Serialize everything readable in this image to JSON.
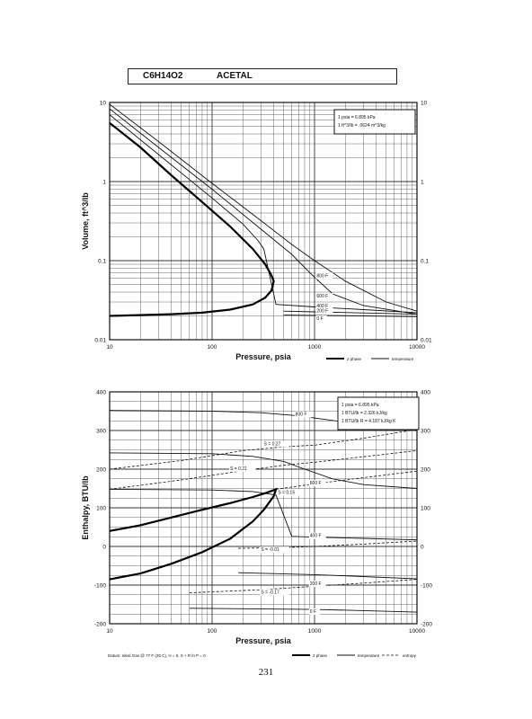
{
  "header": {
    "formula": "C6H14O2",
    "name": "ACETAL"
  },
  "page_number": "231",
  "chart_data": [
    {
      "type": "line",
      "xscale": "log",
      "yscale": "log",
      "xlabel": "Pressure,  psia",
      "ylabel": "Volume, ft^3/lb",
      "xlim": [
        10,
        10000
      ],
      "ylim": [
        0.01,
        10
      ],
      "xticks": [
        "10",
        "100",
        "1000",
        "10000"
      ],
      "yticks": [
        "0.01",
        "0.1",
        "1",
        "10"
      ],
      "ytick_values": [
        0.01,
        0.1,
        1,
        10
      ],
      "conversions": [
        "1 psia = 6.895 kPa",
        "1 ft^3/lb = .0624 m^3/kg"
      ],
      "legend": [
        "2 phase",
        "temperature"
      ],
      "series": [
        {
          "kind": "2 phase",
          "points": [
            [
              10,
              5.5
            ],
            [
              20,
              2.7
            ],
            [
              40,
              1.2
            ],
            [
              80,
              0.55
            ],
            [
              150,
              0.27
            ],
            [
              250,
              0.14
            ],
            [
              330,
              0.09
            ],
            [
              380,
              0.065
            ],
            [
              400,
              0.055
            ],
            [
              380,
              0.042
            ],
            [
              330,
              0.034
            ],
            [
              250,
              0.028
            ],
            [
              150,
              0.024
            ],
            [
              80,
              0.022
            ],
            [
              40,
              0.021
            ],
            [
              10,
              0.02
            ]
          ]
        },
        {
          "kind": "temperature",
          "name": "800 F",
          "points": [
            [
              10,
              9.5
            ],
            [
              30,
              3.2
            ],
            [
              100,
              0.95
            ],
            [
              300,
              0.32
            ],
            [
              600,
              0.16
            ],
            [
              1000,
              0.1
            ],
            [
              2000,
              0.055
            ],
            [
              5000,
              0.03
            ],
            [
              10000,
              0.023
            ]
          ]
        },
        {
          "kind": "temperature",
          "name": "600 F",
          "points": [
            [
              10,
              8.3
            ],
            [
              30,
              2.7
            ],
            [
              100,
              0.8
            ],
            [
              300,
              0.25
            ],
            [
              600,
              0.12
            ],
            [
              900,
              0.07
            ],
            [
              1500,
              0.038
            ],
            [
              3000,
              0.027
            ],
            [
              10000,
              0.021
            ]
          ]
        },
        {
          "kind": "temperature",
          "name": "400 F",
          "points": [
            [
              10,
              7
            ],
            [
              30,
              2.2
            ],
            [
              100,
              0.62
            ],
            [
              200,
              0.29
            ],
            [
              280,
              0.18
            ],
            [
              320,
              0.14
            ],
            [
              420,
              0.028
            ],
            [
              1000,
              0.026
            ],
            [
              3000,
              0.024
            ],
            [
              10000,
              0.022
            ]
          ]
        },
        {
          "kind": "temperature",
          "name": "200 F",
          "points": [
            [
              500,
              0.023
            ],
            [
              1000,
              0.0225
            ],
            [
              3000,
              0.0218
            ],
            [
              10000,
              0.021
            ]
          ]
        },
        {
          "kind": "temperature",
          "name": "0 F",
          "points": [
            [
              500,
              0.0205
            ],
            [
              1000,
              0.0203
            ],
            [
              3000,
              0.02
            ],
            [
              10000,
              0.0196
            ]
          ]
        }
      ],
      "labels": [
        {
          "text": "800 F",
          "x": 1050,
          "y": 0.062
        },
        {
          "text": "600 F",
          "x": 1050,
          "y": 0.034
        },
        {
          "text": "400 F",
          "x": 1050,
          "y": 0.0255
        },
        {
          "text": "200 F",
          "x": 1050,
          "y": 0.0222
        },
        {
          "text": "0 F",
          "x": 1050,
          "y": 0.0178
        }
      ]
    },
    {
      "type": "line",
      "xscale": "log",
      "yscale": "linear",
      "xlabel": "Pressure,  psia",
      "ylabel": "Enthalpy, BTU/lb",
      "xlim": [
        10,
        10000
      ],
      "ylim": [
        -200,
        400
      ],
      "xticks": [
        "10",
        "100",
        "1000",
        "10000"
      ],
      "yticks": [
        "-200",
        "-100",
        "0",
        "100",
        "200",
        "300",
        "400"
      ],
      "ytick_values": [
        -200,
        -100,
        0,
        100,
        200,
        300,
        400
      ],
      "conversions": [
        "1 psia = 6.895 kPa",
        "1 BTU/lb = 2.326 kJ/kg",
        "1 BTU/lb R = 4.187 kJ/kg K"
      ],
      "datum": "Datum: Ideal Gas @ 77 F (25 C), H = 0, S + R ln P = 0",
      "legend": [
        "2 phase",
        "temperature",
        "entropy"
      ],
      "series": [
        {
          "kind": "2 phase",
          "points": [
            [
              10,
              40
            ],
            [
              20,
              55
            ],
            [
              40,
              75
            ],
            [
              80,
              95
            ],
            [
              150,
              112
            ],
            [
              250,
              128
            ],
            [
              350,
              140
            ],
            [
              420,
              148
            ],
            [
              400,
              130
            ],
            [
              320,
              95
            ],
            [
              250,
              65
            ],
            [
              150,
              20
            ],
            [
              80,
              -15
            ],
            [
              40,
              -45
            ],
            [
              20,
              -70
            ],
            [
              10,
              -85
            ]
          ]
        },
        {
          "kind": "temperature",
          "name": "800 F",
          "points": [
            [
              10,
              352
            ],
            [
              100,
              350
            ],
            [
              300,
              346
            ],
            [
              700,
              338
            ],
            [
              1500,
              326
            ],
            [
              3000,
              314
            ],
            [
              10000,
              300
            ]
          ]
        },
        {
          "kind": "temperature",
          "name": "600 F",
          "points": [
            [
              10,
              242
            ],
            [
              100,
              240
            ],
            [
              250,
              233
            ],
            [
              500,
              220
            ],
            [
              800,
              200
            ],
            [
              1500,
              175
            ],
            [
              3000,
              160
            ],
            [
              10000,
              150
            ]
          ]
        },
        {
          "kind": "temperature",
          "name": "400 F",
          "points": [
            [
              10,
              148
            ],
            [
              100,
              146
            ],
            [
              250,
              142
            ],
            [
              420,
              133
            ],
            [
              600,
              26
            ],
            [
              1000,
              24
            ],
            [
              3000,
              21
            ],
            [
              10000,
              17
            ]
          ]
        },
        {
          "kind": "temperature",
          "name": "200 F",
          "points": [
            [
              180,
              -68
            ],
            [
              1000,
              -73
            ],
            [
              3000,
              -78
            ],
            [
              10000,
              -84
            ]
          ]
        },
        {
          "kind": "temperature",
          "name": "0 F",
          "points": [
            [
              60,
              -160
            ],
            [
              1000,
              -163
            ],
            [
              3000,
              -166
            ],
            [
              10000,
              -170
            ]
          ]
        },
        {
          "kind": "entropy",
          "name": "S = 0.27",
          "points": [
            [
              10,
              200
            ],
            [
              50,
              222
            ],
            [
              200,
              248
            ],
            [
              500,
              258
            ],
            [
              1000,
              262
            ],
            [
              3000,
              280
            ],
            [
              10000,
              303
            ]
          ]
        },
        {
          "kind": "entropy",
          "name": "S = 0.21",
          "points": [
            [
              10,
              148
            ],
            [
              50,
              172
            ],
            [
              200,
              196
            ],
            [
              500,
              210
            ],
            [
              1000,
              218
            ],
            [
              3000,
              232
            ],
            [
              10000,
              248
            ]
          ]
        },
        {
          "kind": "entropy",
          "name": "S = 0.15",
          "points": [
            [
              420,
              148
            ],
            [
              1000,
              162
            ],
            [
              3000,
              178
            ],
            [
              10000,
              195
            ]
          ]
        },
        {
          "kind": "entropy",
          "name": "S = -0.01",
          "points": [
            [
              180,
              -5
            ],
            [
              500,
              -3
            ],
            [
              1000,
              0
            ],
            [
              3000,
              6
            ],
            [
              10000,
              14
            ]
          ]
        },
        {
          "kind": "entropy",
          "name": "S = -0.17",
          "points": [
            [
              60,
              -120
            ],
            [
              300,
              -112
            ],
            [
              1000,
              -103
            ],
            [
              3000,
              -95
            ],
            [
              10000,
              -85
            ]
          ]
        }
      ],
      "labels": [
        {
          "text": "800 F",
          "x": 650,
          "y": 338
        },
        {
          "text": "S = 0.27",
          "x": 320,
          "y": 262
        },
        {
          "text": "S = 0.21",
          "x": 150,
          "y": 198
        },
        {
          "text": "600 F",
          "x": 900,
          "y": 160
        },
        {
          "text": "S = 0.15",
          "x": 440,
          "y": 136
        },
        {
          "text": "400 F",
          "x": 900,
          "y": 24
        },
        {
          "text": "S = -0.01",
          "x": 300,
          "y": -12
        },
        {
          "text": "200 F",
          "x": 900,
          "y": -100
        },
        {
          "text": "S = -0.17",
          "x": 300,
          "y": -122
        },
        {
          "text": "0 F",
          "x": 900,
          "y": -172
        }
      ]
    }
  ]
}
